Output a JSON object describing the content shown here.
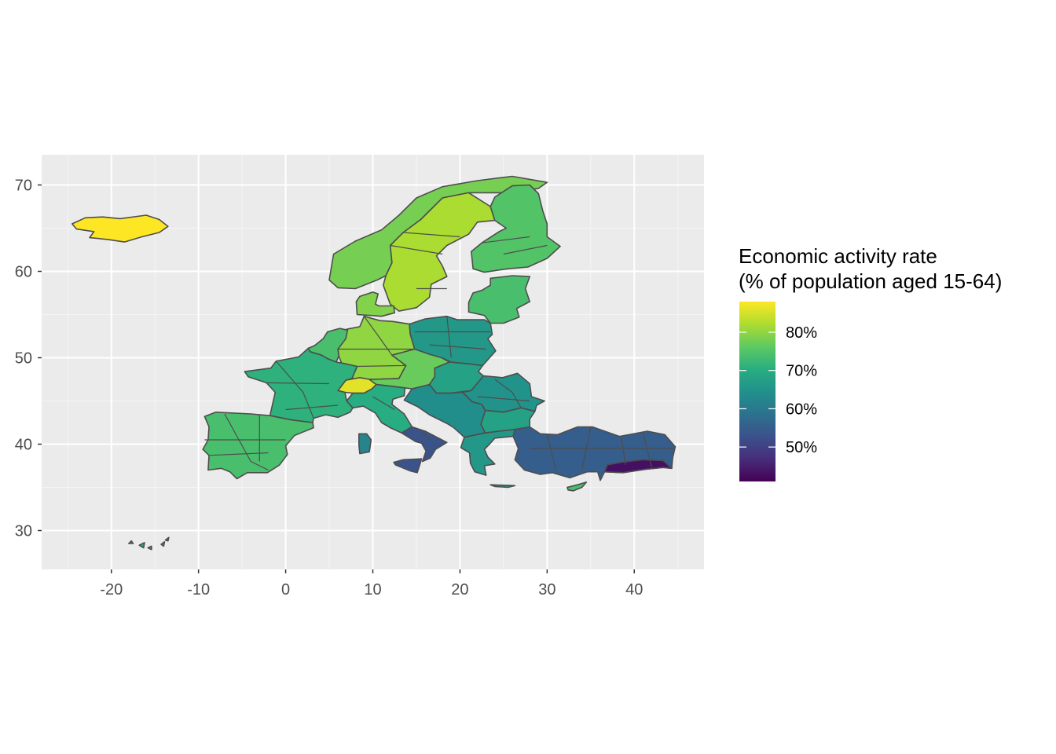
{
  "chart_data": {
    "type": "choropleth-map",
    "x_ticks": [
      "-20",
      "-10",
      "0",
      "10",
      "20",
      "30",
      "40"
    ],
    "y_ticks": [
      "30",
      "40",
      "50",
      "60",
      "70"
    ],
    "x_range": [
      -28,
      48
    ],
    "y_range": [
      25.5,
      73.5
    ],
    "grid": "on",
    "legend": {
      "title_line1": "Economic activity rate",
      "title_line2": "(% of population aged 15-64)",
      "ticks": [
        "80%",
        "70%",
        "60%",
        "50%"
      ],
      "tick_values": [
        80,
        70,
        60,
        50
      ],
      "range": [
        41,
        88
      ],
      "placement": "right"
    },
    "colors": {
      "panel": "#ebebeb",
      "grid": "#ffffff",
      "border": "#4d4d4d"
    },
    "regions": [
      {
        "name": "Iceland",
        "value": 88
      },
      {
        "name": "Norway",
        "value": 78
      },
      {
        "name": "Sweden",
        "value": 82
      },
      {
        "name": "Finland",
        "value": 75
      },
      {
        "name": "Estonia-Latvia-Lithuania",
        "value": 74
      },
      {
        "name": "Denmark",
        "value": 79
      },
      {
        "name": "Germany",
        "value": 80
      },
      {
        "name": "Switzerland",
        "value": 86
      },
      {
        "name": "Netherlands-Belgium",
        "value": 74
      },
      {
        "name": "France",
        "value": 71
      },
      {
        "name": "Poland",
        "value": 66
      },
      {
        "name": "Czechia-Austria",
        "value": 77
      },
      {
        "name": "Hungary-Slovakia",
        "value": 68
      },
      {
        "name": "Romania",
        "value": 65
      },
      {
        "name": "Bulgaria",
        "value": 68
      },
      {
        "name": "Balkans",
        "value": 64
      },
      {
        "name": "Italy North",
        "value": 70
      },
      {
        "name": "Italy South",
        "value": 53
      },
      {
        "name": "Sardinia",
        "value": 62
      },
      {
        "name": "Spain-Portugal",
        "value": 74
      },
      {
        "name": "Greece",
        "value": 66
      },
      {
        "name": "Cyprus",
        "value": 74
      },
      {
        "name": "Turkey",
        "value": 55
      },
      {
        "name": "Turkey South-East",
        "value": 43
      },
      {
        "name": "Canary Islands",
        "value": 70
      }
    ]
  }
}
